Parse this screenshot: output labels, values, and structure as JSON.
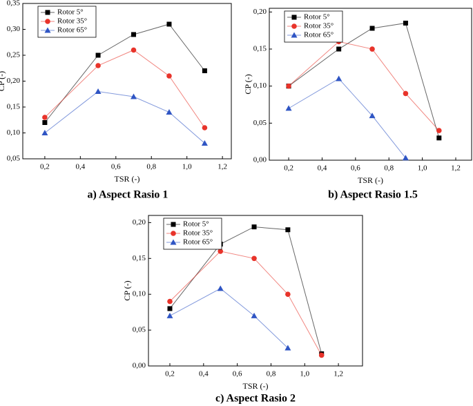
{
  "chart_data": [
    {
      "type": "line",
      "title": "a) Aspect Rasio 1",
      "xlabel": "TSR (-)",
      "ylabel": "CP (-)",
      "x": [
        0.2,
        0.5,
        0.7,
        0.9,
        1.1
      ],
      "xlim": [
        0.076,
        1.25
      ],
      "ylim": [
        0.05,
        0.35
      ],
      "xticks": [
        {
          "value": 0.2,
          "label": "0,2"
        },
        {
          "value": 0.4,
          "label": "0,4"
        },
        {
          "value": 0.6,
          "label": "0,6"
        },
        {
          "value": 0.8,
          "label": "0,8"
        },
        {
          "value": 1.0,
          "label": "1,0"
        },
        {
          "value": 1.2,
          "label": "1,2"
        }
      ],
      "yticks": [
        {
          "value": 0.05,
          "label": "0,05"
        },
        {
          "value": 0.1,
          "label": "0,10"
        },
        {
          "value": 0.15,
          "label": "0,15"
        },
        {
          "value": 0.2,
          "label": "0,20"
        },
        {
          "value": 0.25,
          "label": "0,25"
        },
        {
          "value": 0.3,
          "label": "0,30"
        },
        {
          "value": 0.35,
          "label": "0,35"
        }
      ],
      "series": [
        {
          "name": "Rotor 5°",
          "color": "#000000",
          "marker": "square",
          "values": [
            0.12,
            0.25,
            0.29,
            0.31,
            0.22
          ]
        },
        {
          "name": "Rotor 35°",
          "color": "#e8332a",
          "marker": "circle",
          "values": [
            0.13,
            0.23,
            0.26,
            0.21,
            0.11
          ]
        },
        {
          "name": "Rotor 65°",
          "color": "#2f55c4",
          "marker": "triangle",
          "values": [
            0.1,
            0.18,
            0.17,
            0.14,
            0.08
          ]
        }
      ]
    },
    {
      "type": "line",
      "title": "b) Aspect Rasio 1.5",
      "xlabel": "TSR (-)",
      "ylabel": "CP (-)",
      "x": [
        0.2,
        0.5,
        0.7,
        0.9,
        1.1
      ],
      "xlim": [
        0.084,
        1.295
      ],
      "ylim": [
        0,
        0.205
      ],
      "xticks": [
        {
          "value": 0.2,
          "label": "0,2"
        },
        {
          "value": 0.4,
          "label": "0,4"
        },
        {
          "value": 0.6,
          "label": "0,6"
        },
        {
          "value": 0.8,
          "label": "0,8"
        },
        {
          "value": 1.0,
          "label": "1,0"
        },
        {
          "value": 1.2,
          "label": "1,2"
        }
      ],
      "yticks": [
        {
          "value": 0,
          "label": "0,00"
        },
        {
          "value": 0.05,
          "label": "0,05"
        },
        {
          "value": 0.1,
          "label": "0,10"
        },
        {
          "value": 0.15,
          "label": "0,15"
        },
        {
          "value": 0.2,
          "label": "0,20"
        }
      ],
      "series": [
        {
          "name": "Rotor 5°",
          "color": "#000000",
          "marker": "square",
          "values": [
            0.1,
            0.15,
            0.178,
            0.185,
            0.03
          ]
        },
        {
          "name": "Rotor 35°",
          "color": "#e8332a",
          "marker": "circle",
          "values": [
            0.1,
            0.16,
            0.15,
            0.09,
            0.04
          ]
        },
        {
          "name": "Rotor 65°",
          "color": "#2f55c4",
          "marker": "triangle",
          "values": [
            0.07,
            0.11,
            0.06,
            0.003,
            null
          ]
        }
      ]
    },
    {
      "type": "line",
      "title": "c) Aspect Rasio 2",
      "xlabel": "TSR (-)",
      "ylabel": "CP (-)",
      "x": [
        0.2,
        0.5,
        0.7,
        0.9,
        1.1
      ],
      "xlim": [
        0.073,
        1.343
      ],
      "ylim": [
        0,
        0.21
      ],
      "xticks": [
        {
          "value": 0.2,
          "label": "0,2"
        },
        {
          "value": 0.4,
          "label": "0,4"
        },
        {
          "value": 0.6,
          "label": "0,6"
        },
        {
          "value": 0.8,
          "label": "0,8"
        },
        {
          "value": 1.0,
          "label": "1,0"
        },
        {
          "value": 1.2,
          "label": "1,2"
        }
      ],
      "yticks": [
        {
          "value": 0,
          "label": "0,00"
        },
        {
          "value": 0.05,
          "label": "0,05"
        },
        {
          "value": 0.1,
          "label": "0,10"
        },
        {
          "value": 0.15,
          "label": "0,15"
        },
        {
          "value": 0.2,
          "label": "0,20"
        }
      ],
      "series": [
        {
          "name": "Rotor 5°",
          "color": "#000000",
          "marker": "square",
          "values": [
            0.08,
            0.17,
            0.194,
            0.19,
            0.017
          ]
        },
        {
          "name": "Rotor 35°",
          "color": "#e8332a",
          "marker": "circle",
          "values": [
            0.09,
            0.16,
            0.15,
            0.1,
            0.015
          ]
        },
        {
          "name": "Rotor 65°",
          "color": "#2f55c4",
          "marker": "triangle",
          "values": [
            0.07,
            0.108,
            0.07,
            0.025,
            null
          ]
        }
      ]
    }
  ]
}
